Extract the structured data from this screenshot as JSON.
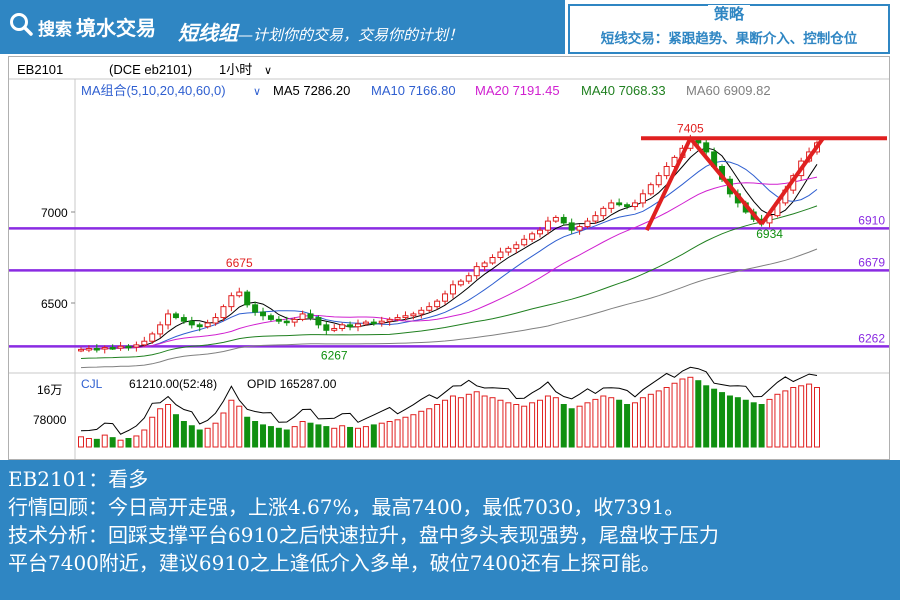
{
  "header": {
    "brand_prefix": "搜索",
    "brand_name": "境水交易",
    "tagline_main": "短线组",
    "tagline_rest": "—计划你的交易，交易你的计划！",
    "strategy_title": "策略",
    "strategy_body": "短线交易：紧跟趋势、果断介入、控制仓位"
  },
  "chart_header": {
    "symbol": "EB2101",
    "exchange": "(DCE eb2101)",
    "period": "1小时",
    "ma_group": "MA组合(5,10,20,40,60,0)",
    "ma5": "MA5 7286.20",
    "ma10": "MA10 7166.80",
    "ma20": "MA20 7191.45",
    "ma40": "MA40 7068.33",
    "ma60": "MA60 6909.82"
  },
  "colors": {
    "ma5": "#000000",
    "ma10": "#2f5fd0",
    "ma20": "#d020d0",
    "ma40": "#208020",
    "ma60": "#808080",
    "up": "#e02020",
    "down": "#109010",
    "level": "#8a2be2",
    "pattern": "#e02020"
  },
  "chart_data": {
    "type": "candlestick",
    "y_ticks": [
      "7000",
      "6500"
    ],
    "levels": [
      "6910",
      "6679",
      "6262"
    ],
    "annotations": {
      "high": "7405",
      "low1": "6934",
      "left_high": "6675",
      "left_low": "6267"
    },
    "volume": {
      "label": "CJL",
      "value": "61210.00(52:48)",
      "opid": "OPID 165287.00",
      "y_ticks": [
        "16万",
        "78000"
      ]
    },
    "closes": [
      6245,
      6250,
      6248,
      6255,
      6252,
      6262,
      6258,
      6270,
      6290,
      6330,
      6380,
      6440,
      6420,
      6400,
      6380,
      6370,
      6390,
      6420,
      6480,
      6540,
      6560,
      6490,
      6450,
      6430,
      6410,
      6400,
      6395,
      6410,
      6440,
      6420,
      6380,
      6350,
      6360,
      6380,
      6370,
      6385,
      6395,
      6390,
      6400,
      6410,
      6420,
      6430,
      6440,
      6460,
      6480,
      6510,
      6550,
      6600,
      6620,
      6650,
      6700,
      6720,
      6750,
      6780,
      6800,
      6820,
      6850,
      6880,
      6900,
      6950,
      6970,
      6940,
      6900,
      6920,
      6950,
      6980,
      7020,
      7050,
      7040,
      7030,
      7050,
      7100,
      7150,
      7200,
      7250,
      7300,
      7350,
      7400,
      7380,
      7330,
      7250,
      7180,
      7100,
      7050,
      7000,
      6960,
      6940,
      6980,
      7050,
      7120,
      7200,
      7280,
      7330,
      7380
    ],
    "volumes": [
      12,
      10,
      9,
      14,
      11,
      8,
      10,
      13,
      20,
      35,
      45,
      50,
      38,
      30,
      25,
      20,
      22,
      28,
      40,
      55,
      48,
      35,
      30,
      26,
      24,
      22,
      20,
      24,
      30,
      28,
      26,
      24,
      22,
      25,
      23,
      22,
      24,
      26,
      28,
      30,
      32,
      35,
      38,
      42,
      45,
      50,
      55,
      60,
      58,
      62,
      65,
      60,
      58,
      55,
      52,
      50,
      48,
      52,
      55,
      60,
      58,
      50,
      45,
      48,
      52,
      56,
      60,
      58,
      55,
      50,
      52,
      58,
      62,
      66,
      70,
      75,
      80,
      82,
      78,
      72,
      68,
      64,
      60,
      58,
      55,
      52,
      50,
      56,
      62,
      66,
      70,
      72,
      74,
      70
    ]
  },
  "analysis": {
    "line1": "EB2101：看多",
    "line2": "行情回顾：今日高开走强，上涨4.67%，最高7400，最低7030，收7391。",
    "line3": "技术分析：回踩支撑平台6910之后快速拉升，盘中多头表现强势，尾盘收于压力",
    "line4": "平台7400附近，建议6910之上逢低介入多单，破位7400还有上探可能。"
  }
}
